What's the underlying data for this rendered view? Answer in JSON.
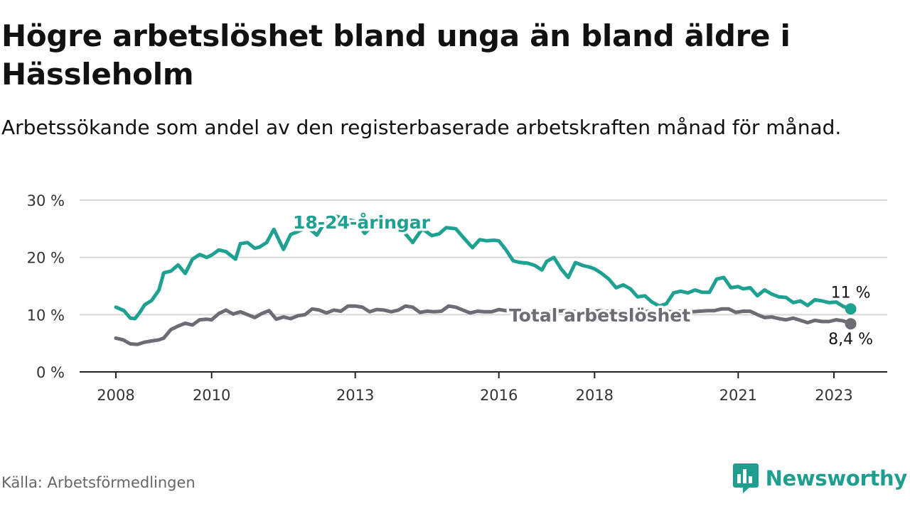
{
  "title": "Högre arbetslöshet bland unga än bland äldre i Hässleholm",
  "subtitle": "Arbetssökande som andel av den registerbaserade arbetskraften månad för månad.",
  "source": "Källa: Arbetsförmedlingen",
  "brand": {
    "name": "Newsworthy",
    "icon": "newsworthy-logo-icon"
  },
  "colors": {
    "youth": "#1fa192",
    "total": "#6d6c75",
    "grid": "#d8d8d8",
    "axis": "#222222"
  },
  "chart_data": {
    "type": "line",
    "title": "Högre arbetslöshet bland unga än bland äldre i Hässleholm",
    "xlabel": "",
    "ylabel": "",
    "ylim": [
      0,
      30
    ],
    "xlim": [
      2008.0,
      2023.55
    ],
    "y_ticks": [
      0,
      10,
      20,
      30
    ],
    "y_tick_labels": [
      "0 %",
      "10 %",
      "20 %",
      "30 %"
    ],
    "x_ticks": [
      2008,
      2010,
      2013,
      2016,
      2018,
      2021,
      2023
    ],
    "x_tick_labels": [
      "2008",
      "2010",
      "2013",
      "2016",
      "2018",
      "2021",
      "2023"
    ],
    "series": [
      {
        "name": "18-24-åringar",
        "label": "18-24-åringar",
        "end_label": "11 %",
        "x": [
          2008.0,
          2008.17,
          2008.3,
          2008.4,
          2008.5,
          2008.6,
          2008.75,
          2008.9,
          2009.0,
          2009.15,
          2009.3,
          2009.45,
          2009.6,
          2009.75,
          2009.9,
          2010.0,
          2010.15,
          2010.3,
          2010.5,
          2010.6,
          2010.75,
          2010.9,
          2011.0,
          2011.15,
          2011.3,
          2011.5,
          2011.65,
          2011.8,
          2012.0,
          2012.2,
          2012.4,
          2012.6,
          2012.8,
          2013.0,
          2013.2,
          2013.4,
          2013.6,
          2013.8,
          2014.0,
          2014.2,
          2014.4,
          2014.6,
          2014.75,
          2014.9,
          2015.1,
          2015.3,
          2015.45,
          2015.6,
          2015.75,
          2015.9,
          2016.0,
          2016.15,
          2016.3,
          2016.45,
          2016.6,
          2016.75,
          2016.9,
          2017.0,
          2017.15,
          2017.3,
          2017.45,
          2017.6,
          2017.75,
          2017.9,
          2018.0,
          2018.15,
          2018.3,
          2018.45,
          2018.6,
          2018.75,
          2018.9,
          2019.05,
          2019.2,
          2019.35,
          2019.5,
          2019.65,
          2019.8,
          2019.95,
          2020.1,
          2020.25,
          2020.4,
          2020.55,
          2020.7,
          2020.85,
          2021.0,
          2021.1,
          2021.25,
          2021.4,
          2021.55,
          2021.7,
          2021.85,
          2022.0,
          2022.15,
          2022.3,
          2022.45,
          2022.6,
          2022.75,
          2022.9,
          2023.05,
          2023.2,
          2023.35
        ],
        "values": [
          11.3,
          10.7,
          9.4,
          9.3,
          10.4,
          11.7,
          12.5,
          14.3,
          17.3,
          17.6,
          18.7,
          17.2,
          19.7,
          20.5,
          20.0,
          20.4,
          21.3,
          21.0,
          19.7,
          22.4,
          22.6,
          21.6,
          21.8,
          22.6,
          24.9,
          21.4,
          24.0,
          24.5,
          25.3,
          23.9,
          26.6,
          27.2,
          26.7,
          26.3,
          24.2,
          26.0,
          26.4,
          25.1,
          24.6,
          22.6,
          25.0,
          23.8,
          24.1,
          25.2,
          25.0,
          23.1,
          21.7,
          23.1,
          22.9,
          23.0,
          22.9,
          21.3,
          19.4,
          19.1,
          19.0,
          18.6,
          17.8,
          19.3,
          20.0,
          18.0,
          16.5,
          19.1,
          18.6,
          18.3,
          18.0,
          17.2,
          16.2,
          14.7,
          15.2,
          14.5,
          13.1,
          13.3,
          12.2,
          11.5,
          11.9,
          13.8,
          14.1,
          13.8,
          14.3,
          13.9,
          13.9,
          16.2,
          16.5,
          14.7,
          14.9,
          14.5,
          14.7,
          13.3,
          14.3,
          13.6,
          13.1,
          13.0,
          12.1,
          12.4,
          11.6,
          12.6,
          12.4,
          12.1,
          12.2,
          11.4,
          11.0
        ]
      },
      {
        "name": "Total arbetslöshet",
        "label": "Total arbetslöshet",
        "end_label": "8,4 %",
        "x": [
          2008.0,
          2008.15,
          2008.3,
          2008.45,
          2008.6,
          2008.75,
          2008.9,
          2009.0,
          2009.15,
          2009.3,
          2009.45,
          2009.6,
          2009.75,
          2009.9,
          2010.0,
          2010.15,
          2010.3,
          2010.45,
          2010.6,
          2010.75,
          2010.9,
          2011.05,
          2011.2,
          2011.35,
          2011.5,
          2011.65,
          2011.8,
          2011.95,
          2012.1,
          2012.25,
          2012.4,
          2012.55,
          2012.7,
          2012.85,
          2013.0,
          2013.15,
          2013.3,
          2013.45,
          2013.6,
          2013.75,
          2013.9,
          2014.05,
          2014.2,
          2014.35,
          2014.5,
          2014.65,
          2014.8,
          2014.95,
          2015.1,
          2015.25,
          2015.4,
          2015.55,
          2015.7,
          2015.85,
          2016.0,
          2016.15,
          2016.3,
          2016.45,
          2016.6,
          2016.75,
          2016.9,
          2017.05,
          2017.2,
          2017.35,
          2017.5,
          2017.65,
          2017.8,
          2017.95,
          2018.1,
          2018.25,
          2018.4,
          2018.55,
          2018.7,
          2018.85,
          2019.0,
          2019.15,
          2019.3,
          2019.45,
          2019.6,
          2019.75,
          2019.9,
          2020.05,
          2020.2,
          2020.35,
          2020.5,
          2020.65,
          2020.8,
          2020.95,
          2021.1,
          2021.25,
          2021.4,
          2021.55,
          2021.7,
          2021.85,
          2022.0,
          2022.15,
          2022.3,
          2022.45,
          2022.6,
          2022.75,
          2022.9,
          2023.05,
          2023.2,
          2023.35
        ],
        "values": [
          5.9,
          5.6,
          4.9,
          4.8,
          5.2,
          5.4,
          5.6,
          5.9,
          7.4,
          8.0,
          8.5,
          8.2,
          9.1,
          9.2,
          9.1,
          10.2,
          10.8,
          10.1,
          10.5,
          10.0,
          9.5,
          10.2,
          10.7,
          9.2,
          9.6,
          9.3,
          9.8,
          10.0,
          11.0,
          10.8,
          10.3,
          10.8,
          10.6,
          11.5,
          11.5,
          11.3,
          10.5,
          10.9,
          10.8,
          10.5,
          10.8,
          11.5,
          11.3,
          10.4,
          10.6,
          10.5,
          10.6,
          11.5,
          11.3,
          10.8,
          10.3,
          10.6,
          10.5,
          10.5,
          10.9,
          10.7,
          10.6,
          10.5,
          10.5,
          10.4,
          10.4,
          10.5,
          10.6,
          10.7,
          10.5,
          10.6,
          10.4,
          10.5,
          10.7,
          10.6,
          10.5,
          10.6,
          10.5,
          10.6,
          10.5,
          10.6,
          10.5,
          10.6,
          10.5,
          10.6,
          10.6,
          10.5,
          10.6,
          10.7,
          10.7,
          11.0,
          11.0,
          10.4,
          10.6,
          10.6,
          10.0,
          9.5,
          9.6,
          9.3,
          9.1,
          9.4,
          9.0,
          8.6,
          9.0,
          8.8,
          8.8,
          9.1,
          8.9,
          8.4
        ]
      }
    ],
    "annotations": [
      "18-24-åringar",
      "Total arbetslöshet",
      "11 %",
      "8,4 %"
    ]
  }
}
